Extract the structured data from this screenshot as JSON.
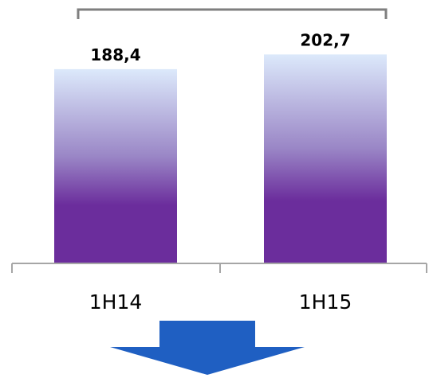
{
  "chart_data": {
    "type": "bar",
    "categories": [
      "1H14",
      "1H15"
    ],
    "values": [
      188.4,
      202.7
    ],
    "value_labels": [
      "188,4",
      "202,7"
    ],
    "title": "",
    "xlabel": "",
    "ylabel": "",
    "ylim": [
      0,
      220
    ],
    "grid": false,
    "legend": "none"
  },
  "colors": {
    "bar_top": "#dce9fb",
    "bar_mid": "#9a86c6",
    "bar_bottom": "#6b2d9c",
    "axis": "#a6a6a6",
    "bracket": "#7f7f7f",
    "arrow": "#1f5fc2"
  },
  "decorations": {
    "bracket": "comparison bracket spanning both bars",
    "arrow": "downward arrow"
  }
}
